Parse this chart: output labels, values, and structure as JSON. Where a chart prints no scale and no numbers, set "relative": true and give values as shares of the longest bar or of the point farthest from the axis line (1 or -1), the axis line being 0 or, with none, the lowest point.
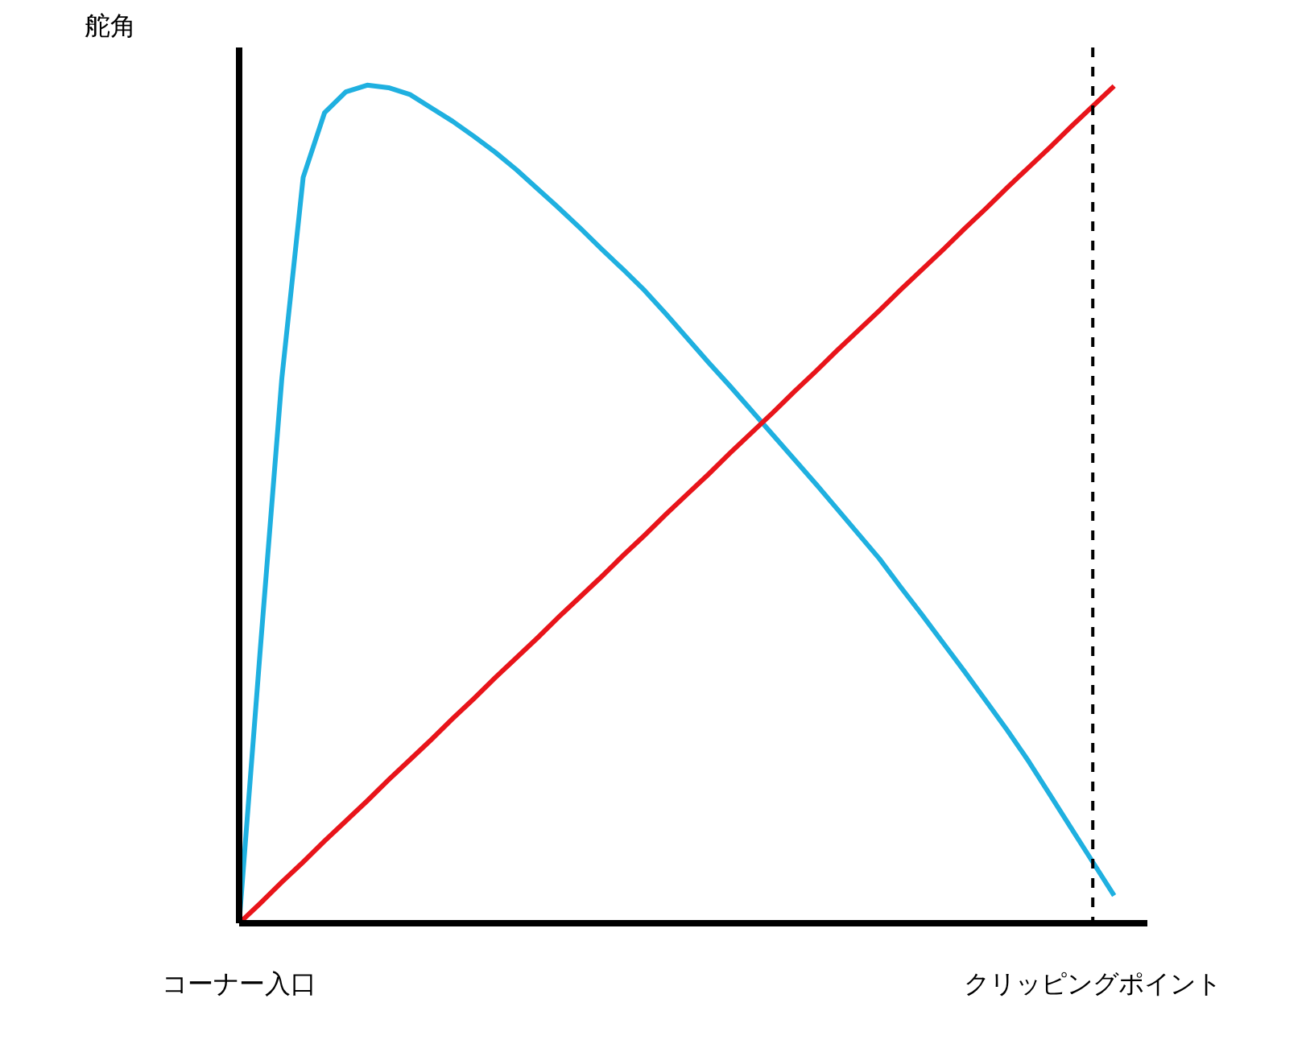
{
  "chart_data": {
    "type": "line",
    "relative": true,
    "ylabel": "舵角",
    "categories": [
      "コーナー入口",
      null,
      null,
      null,
      null,
      null,
      null,
      null,
      null,
      null,
      null,
      null,
      null,
      null,
      null,
      null,
      null,
      null,
      null,
      null,
      null,
      null,
      null,
      null,
      null,
      null,
      null,
      null,
      null,
      null,
      null,
      null,
      null,
      null,
      null,
      null,
      null,
      null,
      null,
      null,
      "クリッピングポイント",
      null
    ],
    "series": [
      {
        "color": "#1fb0e0",
        "values": [
          0,
          0.33,
          0.65,
          0.89,
          0.967,
          0.992,
          1.0,
          0.997,
          0.989,
          0.973,
          0.957,
          0.939,
          0.92,
          0.899,
          0.876,
          0.853,
          0.829,
          0.804,
          0.78,
          0.755,
          0.727,
          0.698,
          0.669,
          0.641,
          0.612,
          0.583,
          0.554,
          0.525,
          0.495,
          0.465,
          0.435,
          0.401,
          0.368,
          0.334,
          0.3,
          0.265,
          0.23,
          0.193,
          0.153,
          0.113,
          0.073,
          0.033
        ]
      },
      {
        "color": "#e8141a",
        "values": [
          0,
          0.024,
          0.049,
          0.073,
          0.098,
          0.122,
          0.146,
          0.171,
          0.195,
          0.219,
          0.244,
          0.268,
          0.293,
          0.317,
          0.341,
          0.366,
          0.39,
          0.414,
          0.439,
          0.463,
          0.488,
          0.512,
          0.536,
          0.561,
          0.585,
          0.609,
          0.634,
          0.658,
          0.683,
          0.707,
          0.731,
          0.756,
          0.78,
          0.804,
          0.829,
          0.853,
          0.878,
          0.902,
          0.926,
          0.951,
          0.975,
          0.999
        ]
      }
    ],
    "ref_lines": [
      {
        "axis": "x",
        "value": "クリッピングポイント",
        "color": "#000000",
        "line_style": "dashed"
      }
    ],
    "grid": false,
    "marker": "none",
    "line_style": "solid"
  }
}
